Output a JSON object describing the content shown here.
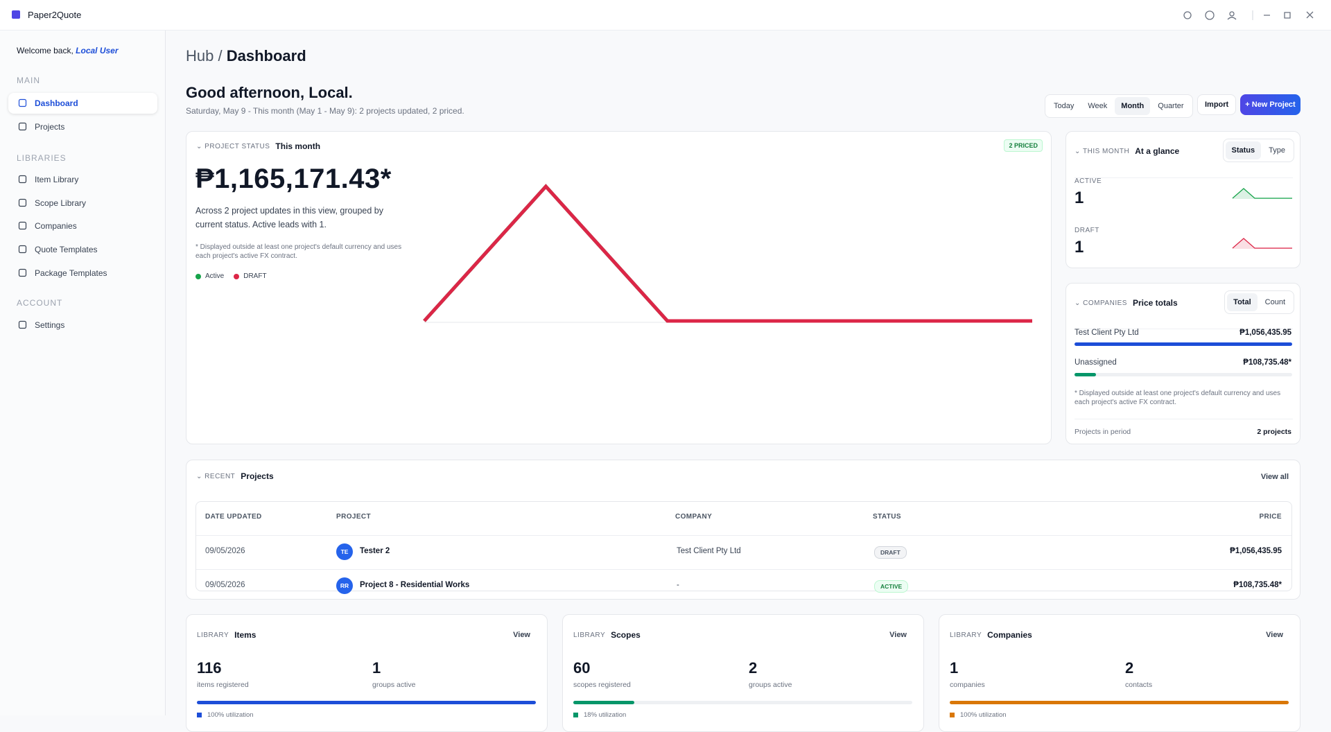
{
  "app": {
    "name": "Paper2Quote"
  },
  "sidebar": {
    "welcome": "Welcome back,",
    "user": "Local User",
    "sections": [
      {
        "title": "MAIN",
        "items": [
          "Dashboard",
          "Projects"
        ]
      },
      {
        "title": "LIBRARIES",
        "items": [
          "Item Library",
          "Scope Library",
          "Companies",
          "Quote Templates",
          "Package Templates"
        ]
      },
      {
        "title": "ACCOUNT",
        "items": [
          "Settings"
        ]
      }
    ]
  },
  "header": {
    "breadcrumb_root": "Hub /",
    "breadcrumb_current": "Dashboard",
    "greeting": "Good afternoon, Local.",
    "subtitle": "Saturday, May 9 - This month (May 1 - May 9): 2 projects updated, 2 priced.",
    "periods": [
      "Today",
      "Week",
      "Month",
      "Quarter"
    ],
    "import": "Import",
    "new_project": "+ New Project"
  },
  "chart_data": {
    "type": "line",
    "kicker": "PROJECT STATUS",
    "title": "This month",
    "badge": "2 PRICED",
    "total": "₱1,165,171.43*",
    "description": "Across 2 project updates in this view, grouped by current status. Active leads with 1.",
    "note": "* Displayed outside at least one project's default currency and uses each project's active FX contract.",
    "categories": [
      null,
      null,
      null,
      null,
      null,
      null
    ],
    "series": [
      {
        "name": "Active",
        "color": "#16a34a",
        "values": [
          0,
          1,
          0,
          0,
          0,
          0
        ]
      },
      {
        "name": "DRAFT",
        "color": "#dc2647",
        "values": [
          0,
          1,
          0,
          0,
          0,
          0
        ]
      }
    ],
    "ylim": [
      0,
      1
    ]
  },
  "glance": {
    "kicker": "THIS MONTH",
    "title": "At a glance",
    "tabs": [
      "Status",
      "Type"
    ],
    "rows": [
      {
        "label": "ACTIVE",
        "value": 1
      },
      {
        "label": "DRAFT",
        "value": 1
      }
    ]
  },
  "companies": {
    "kicker": "COMPANIES",
    "title": "Price totals",
    "tabs": [
      "Total",
      "Count"
    ],
    "rows": [
      {
        "name": "Test Client Pty Ltd",
        "total": "₱1,056,435.95"
      },
      {
        "name": "Unassigned",
        "total": "₱108,735.48*"
      }
    ],
    "note": "* Displayed outside at least one project's default currency and uses each project's active FX contract.",
    "footer_label": "Projects in period",
    "footer_value": "2 projects"
  },
  "recent": {
    "kicker": "RECENT",
    "title": "Projects",
    "view_all": "View all",
    "columns": [
      "DATE UPDATED",
      "PROJECT",
      "COMPANY",
      "STATUS",
      "PRICE"
    ],
    "rows": [
      [
        "09/05/2026",
        {
          "initials": "TE",
          "name": "Tester 2"
        },
        "Test Client Pty Ltd",
        "DRAFT",
        "₱1,056,435.95"
      ],
      [
        "09/05/2026",
        {
          "initials": "RR",
          "name": "Project 8 - Residential Works"
        },
        "-",
        "ACTIVE",
        "₱108,735.48*"
      ]
    ]
  },
  "libraries": [
    {
      "kicker": "LIBRARY",
      "title": "Items",
      "view": "View",
      "stat1": 116,
      "label1": "items registered",
      "stat2": 1,
      "label2": "groups active",
      "utilization": "100% utilization"
    },
    {
      "kicker": "LIBRARY",
      "title": "Scopes",
      "view": "View",
      "stat1": 60,
      "label1": "scopes registered",
      "stat2": 2,
      "label2": "groups active",
      "utilization": "18% utilization"
    },
    {
      "kicker": "LIBRARY",
      "title": "Companies",
      "view": "View",
      "stat1": 1,
      "label1": "companies",
      "stat2": 2,
      "label2": "contacts",
      "utilization": "100% utilization"
    }
  ]
}
